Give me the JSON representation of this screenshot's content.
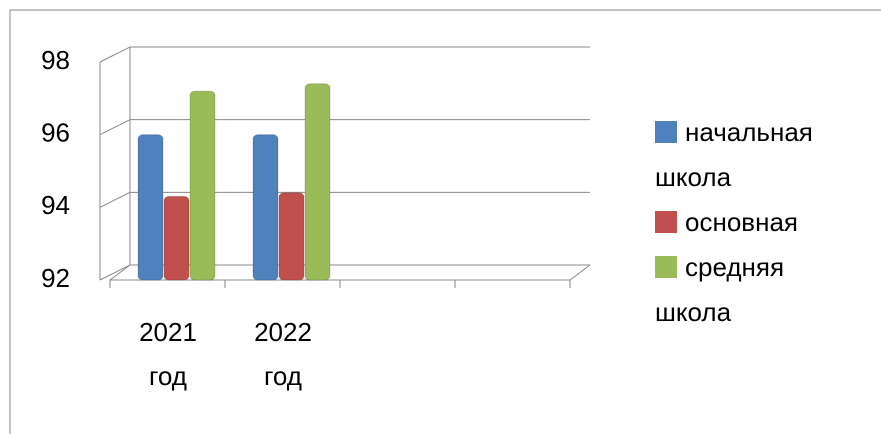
{
  "chart_data": {
    "type": "bar",
    "categories": [
      "2021 год",
      "2022 год",
      null,
      null
    ],
    "series": [
      {
        "name": "начальная школа",
        "color": "#4f81bd",
        "values": [
          96,
          96,
          null,
          null
        ]
      },
      {
        "name": "основная",
        "color": "#c0504d",
        "values": [
          94.3,
          94.4,
          null,
          null
        ]
      },
      {
        "name": "средняя школа",
        "color": "#9bbb59",
        "values": [
          97.2,
          97.4,
          null,
          null
        ]
      }
    ],
    "ylim": [
      92,
      98
    ],
    "yticks": [
      92,
      94,
      96,
      98
    ],
    "grid": true,
    "legend": "right"
  }
}
